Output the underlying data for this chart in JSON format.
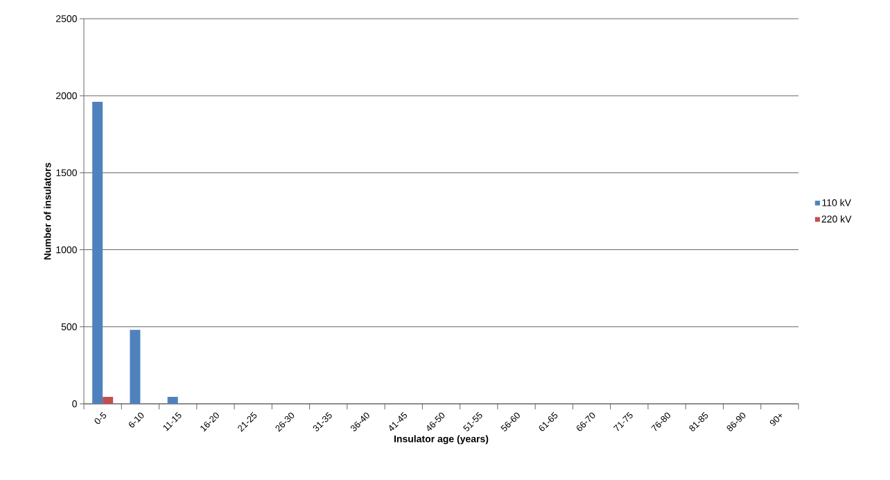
{
  "chart_data": {
    "type": "bar",
    "xlabel": "Insulator age (years)",
    "ylabel": "Number of insulators",
    "categories": [
      "0-5",
      "6-10",
      "11-15",
      "16-20",
      "21-25",
      "26-30",
      "31-35",
      "36-40",
      "41-45",
      "46-50",
      "51-55",
      "56-60",
      "61-65",
      "66-70",
      "71-75",
      "76-80",
      "81-85",
      "86-90",
      "90+"
    ],
    "series": [
      {
        "name": "110 kV",
        "color": "#4f81bd",
        "values": [
          1960,
          480,
          45,
          0,
          0,
          0,
          0,
          0,
          0,
          0,
          0,
          0,
          0,
          0,
          0,
          0,
          0,
          0,
          0
        ]
      },
      {
        "name": "220 kV",
        "color": "#c0504d",
        "values": [
          45,
          0,
          0,
          0,
          0,
          0,
          0,
          0,
          0,
          0,
          0,
          0,
          0,
          0,
          0,
          0,
          0,
          0,
          0
        ]
      }
    ],
    "ylim": [
      0,
      2500
    ],
    "yticks": [
      0,
      500,
      1000,
      1500,
      2000,
      2500
    ],
    "grid": "y",
    "legend": "right"
  }
}
